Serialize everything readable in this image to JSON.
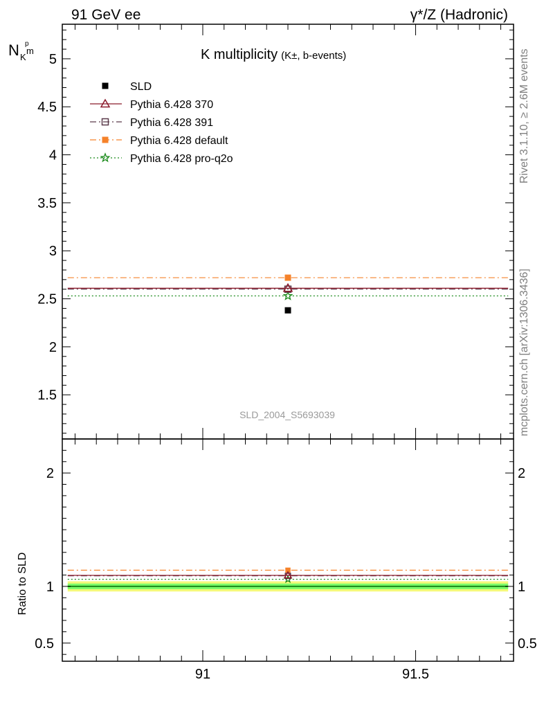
{
  "header": {
    "left": "91 GeV ee",
    "right": "γ*/Z (Hadronic)"
  },
  "side_labels": {
    "rivet": "Rivet 3.1.10, ≥ 2.6M events",
    "mcplots": "mcplots.cern.ch [arXiv:1306.3436]"
  },
  "chart_data": [
    {
      "type": "scatter",
      "title": "K multiplicity",
      "title_suffix": "(K±, b-events)",
      "ylabel": "N",
      "ylabel_sub": "K",
      "ylabel_sub2": "m",
      "ylabel_sup": "p",
      "watermark": "SLD_2004_S5693039",
      "xlim": [
        90.67,
        91.73
      ],
      "ylim": [
        1.04,
        5.36
      ],
      "yticks": [
        1.5,
        2,
        2.5,
        3,
        3.5,
        4,
        4.5,
        5
      ],
      "ytick_labels": [
        "1.5",
        "2",
        "2.5",
        "3",
        "3.5",
        "4",
        "4.5",
        "5"
      ],
      "legend_placement": "top-left",
      "series": [
        {
          "name": "SLD",
          "style": "data",
          "color": "#000000",
          "marker": "square",
          "x": [
            91.2
          ],
          "y": [
            2.38
          ]
        },
        {
          "name": "Pythia 6.428 370",
          "style": "solid",
          "color": "#8b1a2b",
          "marker": "triangle-open",
          "x": [
            91.2
          ],
          "y": [
            2.61
          ]
        },
        {
          "name": "Pythia 6.428 391",
          "style": "dashdot",
          "color": "#5a3a4a",
          "marker": "square-open",
          "x": [
            91.2
          ],
          "y": [
            2.6
          ]
        },
        {
          "name": "Pythia 6.428 default",
          "style": "dashdot",
          "color": "#f5822a",
          "marker": "square",
          "x": [
            91.2
          ],
          "y": [
            2.72
          ]
        },
        {
          "name": "Pythia 6.428 pro-q2o",
          "style": "dotted",
          "color": "#1a8a1a",
          "marker": "star-open",
          "x": [
            91.2
          ],
          "y": [
            2.53
          ]
        }
      ]
    },
    {
      "type": "scatter",
      "ylabel": "Ratio to SLD",
      "xlim": [
        90.67,
        91.73
      ],
      "ylim": [
        0.34,
        2.3
      ],
      "yticks": [
        0.5,
        1,
        2
      ],
      "ytick_labels": [
        "0.5",
        "1",
        "2"
      ],
      "xticks": [
        91,
        91.5
      ],
      "xtick_labels": [
        "91",
        "91.5"
      ],
      "bands": [
        {
          "name": "1-sigma",
          "color": "#7cfc6a",
          "low": 0.975,
          "high": 1.025
        },
        {
          "name": "2-sigma",
          "color": "#f4f97a",
          "low": 0.955,
          "high": 1.045
        }
      ],
      "series": [
        {
          "name": "Pythia 6.428 370",
          "color": "#8b1a2b",
          "x": [
            91.2
          ],
          "y": [
            1.097
          ]
        },
        {
          "name": "Pythia 6.428 391",
          "color": "#5a3a4a",
          "x": [
            91.2
          ],
          "y": [
            1.093
          ]
        },
        {
          "name": "Pythia 6.428 default",
          "color": "#f5822a",
          "x": [
            91.2
          ],
          "y": [
            1.143
          ]
        },
        {
          "name": "Pythia 6.428 pro-q2o",
          "color": "#1a8a1a",
          "x": [
            91.2
          ],
          "y": [
            1.063
          ]
        }
      ]
    }
  ]
}
